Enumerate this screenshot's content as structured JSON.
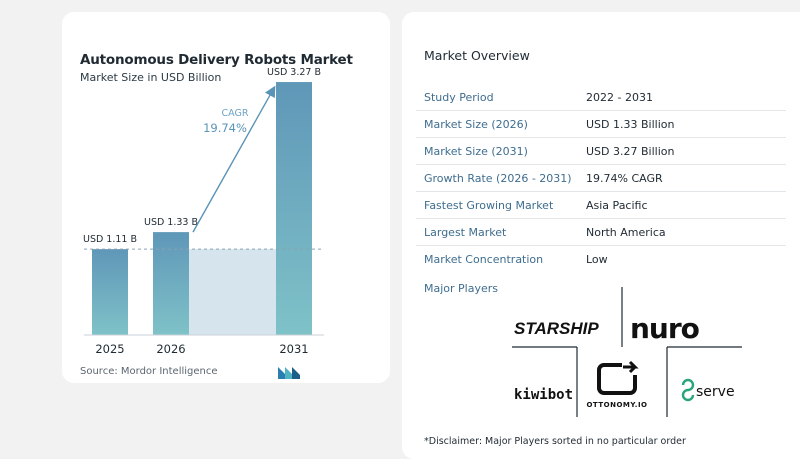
{
  "chart_data": {
    "type": "bar",
    "title": "Autonomous Delivery Robots Market",
    "subtitle": "Market Size in USD Billion",
    "categories": [
      "2025",
      "2026",
      "2031"
    ],
    "values": [
      1.11,
      1.33,
      3.27
    ],
    "value_labels": [
      "USD 1.11 B",
      "USD 1.33 B",
      "USD 3.27 B"
    ],
    "cagr_label": "CAGR",
    "cagr_value": "19.74%",
    "ylim": [
      0,
      3.4
    ]
  },
  "source": "Source:  Mordor Intelligence",
  "overview": {
    "title": "Market Overview",
    "rows": [
      {
        "label": "Study Period",
        "value": "2022 - 2031"
      },
      {
        "label": "Market Size (2026)",
        "value": "USD 1.33 Billion"
      },
      {
        "label": "Market Size (2031)",
        "value": "USD 3.27 Billion"
      },
      {
        "label": "Growth Rate (2026 - 2031)",
        "value": "19.74% CAGR"
      },
      {
        "label": "Fastest Growing Market",
        "value": "Asia Pacific"
      },
      {
        "label": "Largest Market",
        "value": "North America"
      },
      {
        "label": "Market Concentration",
        "value": "Low"
      }
    ]
  },
  "players": {
    "title": "Major Players",
    "names": [
      "STARSHIP",
      "nuro",
      "kiwibot",
      "OTTONOMY.IO",
      "serve"
    ]
  },
  "disclaimer": "*Disclaimer: Major Players sorted in no particular order",
  "colors": {
    "bar_top": "#5f97b8",
    "bar_bottom": "#7fc2c8",
    "label_blue": "#3f6d8f",
    "cagr_blue": "#5a93b8",
    "band": "#d6e4ee"
  }
}
